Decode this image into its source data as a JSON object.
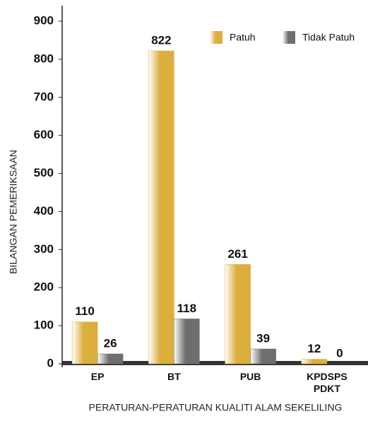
{
  "chart_data": {
    "type": "bar",
    "y_axis_label": "BILANGAN PEMERIKSAAN",
    "x_axis_label": "PERATURAN-PERATURAN KUALITI ALAM SEKELILING",
    "categories": [
      "EP",
      "BT",
      "PUB",
      "KPDSPS PDKT"
    ],
    "series": [
      {
        "name": "Patuh",
        "color": "#dcae3c",
        "values": [
          110,
          822,
          261,
          12
        ]
      },
      {
        "name": "Tidak Patuh",
        "color": "#6e6e6e",
        "values": [
          26,
          118,
          39,
          0
        ]
      }
    ],
    "ylim": [
      0,
      900
    ],
    "yticks": [
      0,
      100,
      200,
      300,
      400,
      500,
      600,
      700,
      800,
      900
    ],
    "legend": "top-right"
  }
}
